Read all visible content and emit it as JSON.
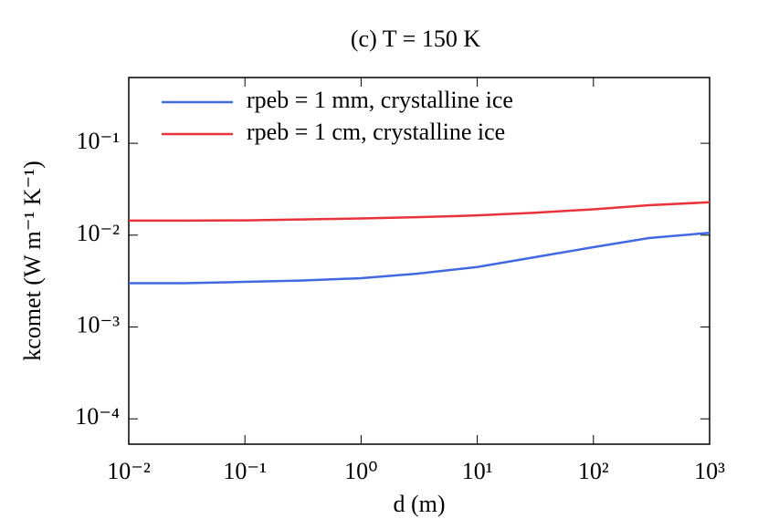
{
  "chart_data": {
    "type": "line",
    "title": "(c) T = 150 K",
    "x_label": "d (m)",
    "y_label": "kcomet (W m⁻¹ K⁻¹)",
    "x": [
      0.01,
      0.03,
      0.1,
      0.3,
      1,
      3,
      10,
      30,
      100,
      300,
      1000
    ],
    "series": [
      {
        "name": "rpeb = 1 mm, crystalline ice",
        "color": "#4169e1",
        "values": [
          0.003,
          0.003,
          0.0031,
          0.0032,
          0.0034,
          0.0038,
          0.0045,
          0.0057,
          0.0074,
          0.0093,
          0.0106
        ]
      },
      {
        "name": "rpeb = 1 cm, crystalline ice",
        "color": "#e8333a",
        "values": [
          0.0144,
          0.0144,
          0.0145,
          0.0148,
          0.0152,
          0.0157,
          0.0164,
          0.0175,
          0.0191,
          0.0212,
          0.0228
        ]
      }
    ],
    "xlim": [
      0.01,
      1000
    ],
    "ylim": [
      5.3e-05,
      0.52
    ],
    "xticks": [
      {
        "value": 0.01,
        "label": "10⁻²"
      },
      {
        "value": 0.1,
        "label": "10⁻¹"
      },
      {
        "value": 1,
        "label": "10⁰"
      },
      {
        "value": 10,
        "label": "10¹"
      },
      {
        "value": 100,
        "label": "10²"
      },
      {
        "value": 1000,
        "label": "10³"
      }
    ],
    "yticks": [
      {
        "value": 0.0001,
        "label": "10⁻⁴"
      },
      {
        "value": 0.001,
        "label": "10⁻³"
      },
      {
        "value": 0.01,
        "label": "10⁻²"
      },
      {
        "value": 0.1,
        "label": "10⁻¹"
      }
    ],
    "xscale": "log",
    "yscale": "log",
    "grid": false,
    "legend": "upper left"
  }
}
